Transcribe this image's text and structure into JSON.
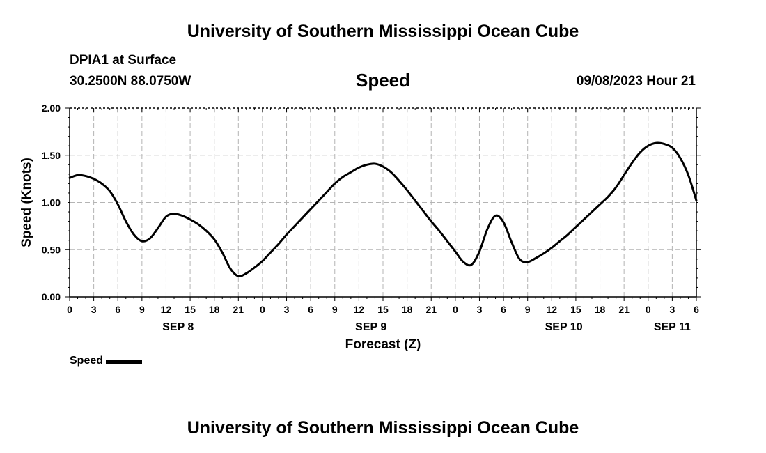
{
  "header": {
    "title": "University of Southern Mississippi Ocean Cube",
    "station": "DPIA1 at Surface",
    "coords": "30.2500N  88.0750W",
    "subtitle": "Speed",
    "datetime": "09/08/2023 Hour 21"
  },
  "footer": {
    "title": "University of Southern Mississippi Ocean Cube"
  },
  "legend": {
    "label": "Speed",
    "color": "#000000"
  },
  "chart_data": {
    "type": "line",
    "title": "Speed",
    "xlabel": "Forecast (Z)",
    "ylabel": "Speed (Knots)",
    "ylim": [
      0,
      2
    ],
    "yticks": [
      "0.00",
      "0.50",
      "1.00",
      "1.50",
      "2.00"
    ],
    "xlim": [
      0,
      78
    ],
    "xtick_labels": [
      "0",
      "3",
      "6",
      "9",
      "12",
      "15",
      "18",
      "21",
      "0",
      "3",
      "6",
      "9",
      "12",
      "15",
      "18",
      "21",
      "0",
      "3",
      "6",
      "9",
      "12",
      "15",
      "18",
      "21",
      "0",
      "3",
      "6"
    ],
    "date_labels": [
      {
        "text": "SEP 8",
        "hour": 13.5
      },
      {
        "text": "SEP 9",
        "hour": 37.5
      },
      {
        "text": "SEP 10",
        "hour": 61.5
      },
      {
        "text": "SEP 11",
        "hour": 75
      }
    ],
    "grid": true,
    "series": [
      {
        "name": "Speed",
        "color": "#000000",
        "x": [
          0,
          1,
          2,
          3,
          4,
          5,
          6,
          7,
          8,
          9,
          10,
          11,
          12,
          13,
          14,
          15,
          16,
          17,
          18,
          19,
          20,
          21,
          22,
          23,
          24,
          25,
          26,
          27,
          28,
          29,
          30,
          31,
          32,
          33,
          34,
          35,
          36,
          37,
          38,
          39,
          40,
          41,
          42,
          43,
          44,
          45,
          46,
          47,
          48,
          49,
          50,
          51,
          52,
          53,
          54,
          55,
          56,
          57,
          58,
          59,
          60,
          61,
          62,
          63,
          64,
          65,
          66,
          67,
          68,
          69,
          70,
          71,
          72,
          73,
          74,
          75,
          76,
          77,
          78
        ],
        "values": [
          1.26,
          1.29,
          1.28,
          1.25,
          1.2,
          1.12,
          0.98,
          0.8,
          0.66,
          0.59,
          0.62,
          0.73,
          0.85,
          0.88,
          0.86,
          0.82,
          0.77,
          0.7,
          0.61,
          0.47,
          0.3,
          0.22,
          0.25,
          0.31,
          0.38,
          0.47,
          0.56,
          0.66,
          0.75,
          0.84,
          0.93,
          1.02,
          1.11,
          1.2,
          1.27,
          1.32,
          1.37,
          1.4,
          1.41,
          1.38,
          1.32,
          1.23,
          1.13,
          1.02,
          0.91,
          0.8,
          0.7,
          0.59,
          0.48,
          0.37,
          0.34,
          0.48,
          0.72,
          0.86,
          0.79,
          0.58,
          0.4,
          0.37,
          0.41,
          0.46,
          0.52,
          0.59,
          0.66,
          0.74,
          0.82,
          0.9,
          0.98,
          1.06,
          1.16,
          1.29,
          1.42,
          1.53,
          1.6,
          1.63,
          1.62,
          1.58,
          1.47,
          1.29,
          1.02
        ]
      }
    ]
  }
}
